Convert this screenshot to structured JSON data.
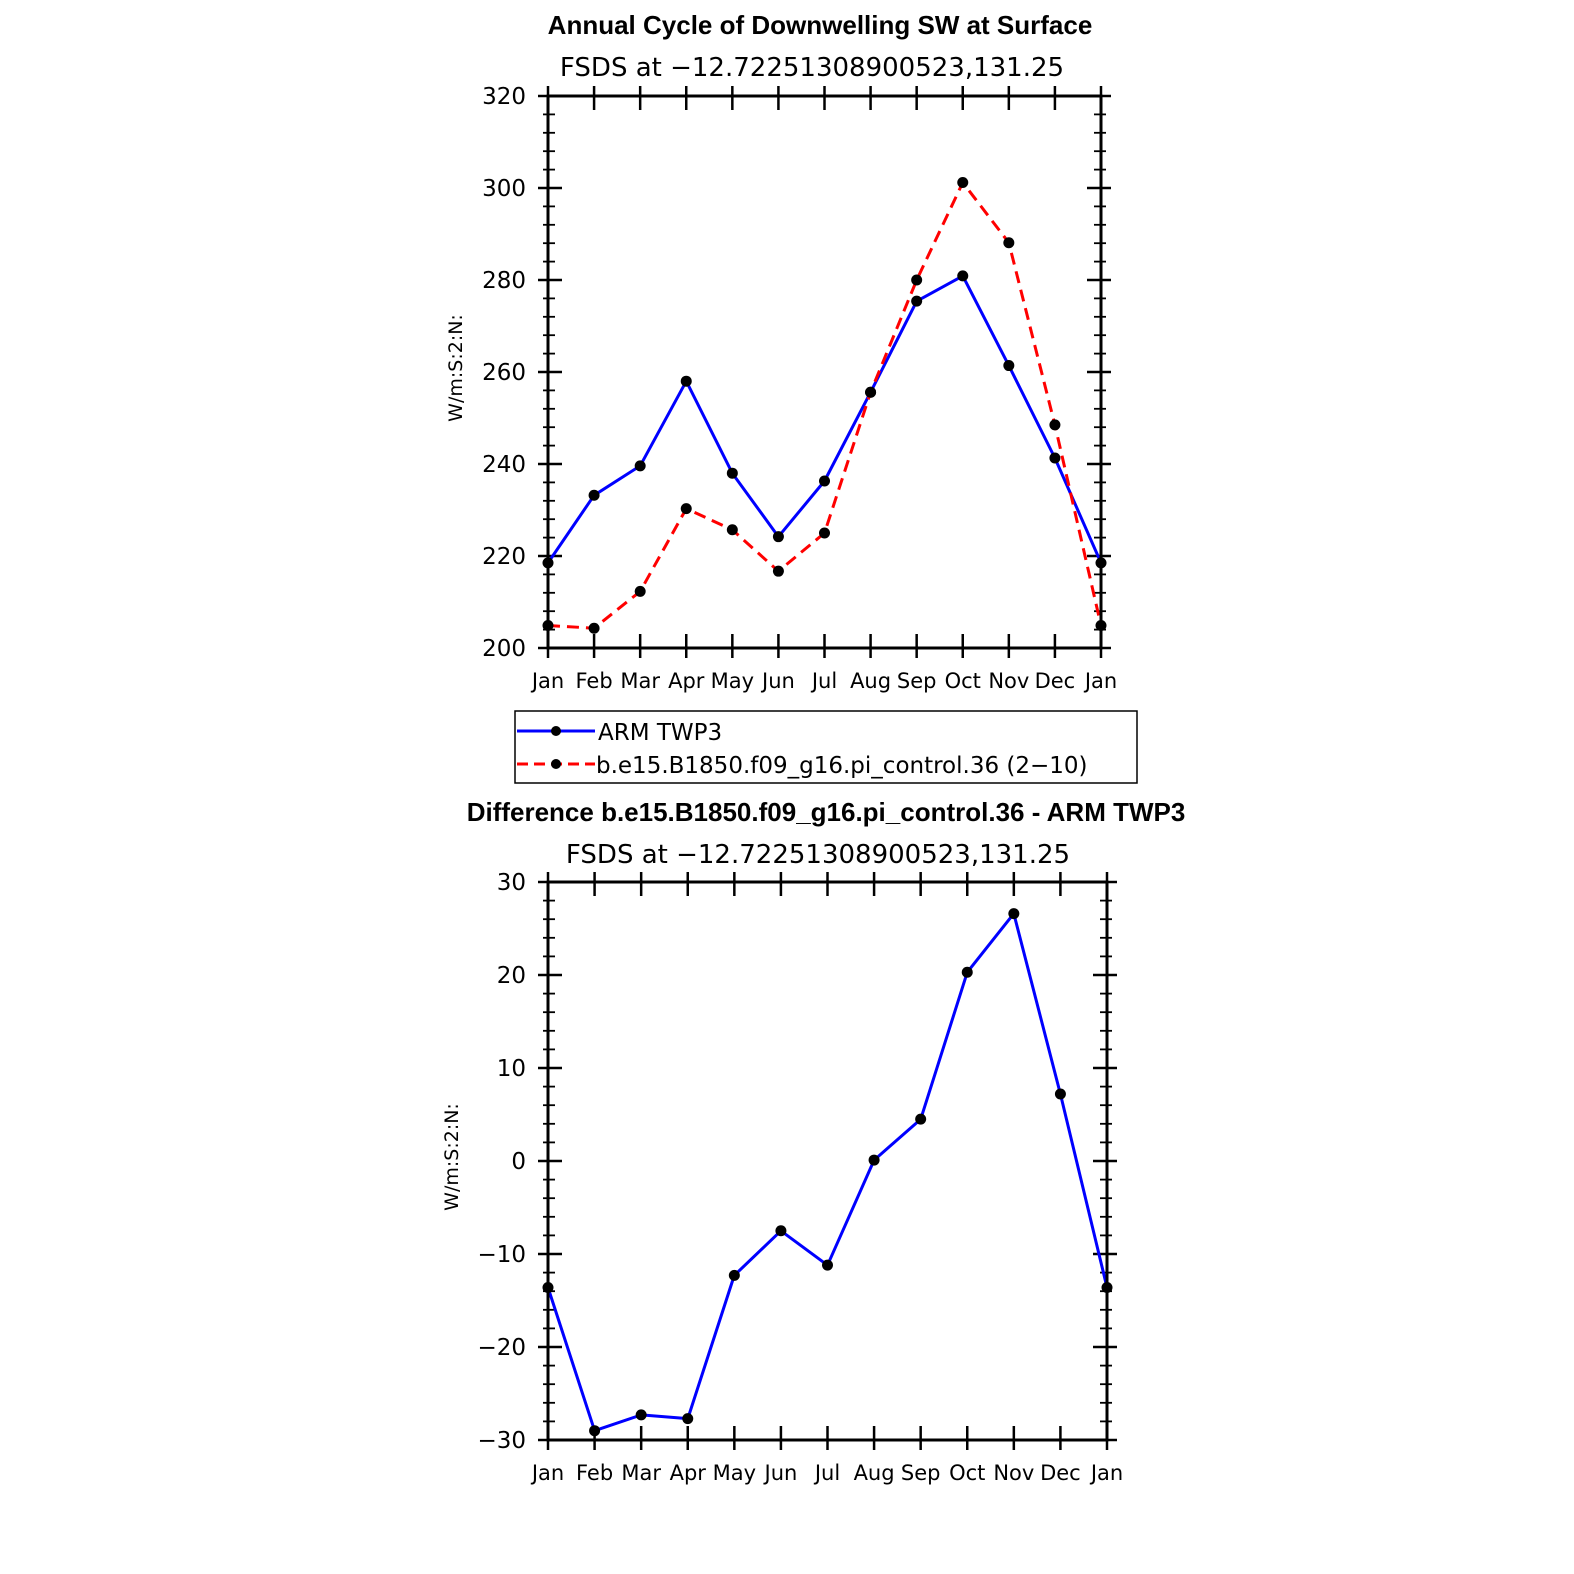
{
  "chart_data": [
    {
      "type": "line",
      "title": "Annual Cycle of Downwelling SW at Surface",
      "subtitle": "FSDS at −12.72251308900523,131.25",
      "ylabel": "W/m:S:2:N:",
      "xlabel": "",
      "categories": [
        "Jan",
        "Feb",
        "Mar",
        "Apr",
        "May",
        "Jun",
        "Jul",
        "Aug",
        "Sep",
        "Oct",
        "Nov",
        "Dec",
        "Jan"
      ],
      "ylim": [
        200,
        320
      ],
      "yticks": [
        "200",
        "220",
        "240",
        "260",
        "280",
        "300",
        "320"
      ],
      "series": [
        {
          "name": "ARM TWP3",
          "color": "#0000ff",
          "dash": "solid",
          "values": [
            218.5,
            233.2,
            239.6,
            258.0,
            238.0,
            224.2,
            236.3,
            255.6,
            275.4,
            280.9,
            261.4,
            241.3,
            218.5
          ]
        },
        {
          "name": "b.e15.B1850.f09_g16.pi_control.36 (2−10)",
          "color": "#ff0000",
          "dash": "dashed",
          "values": [
            204.9,
            204.3,
            212.3,
            230.3,
            225.7,
            216.7,
            225.0,
            255.6,
            280.0,
            301.2,
            288.1,
            248.5,
            204.9
          ]
        }
      ],
      "legend": [
        "ARM TWP3",
        "b.e15.B1850.f09_g16.pi_control.36 (2−10)"
      ],
      "legend_placement": "bottom"
    },
    {
      "type": "line",
      "title": "Difference b.e15.B1850.f09_g16.pi_control.36 - ARM TWP3",
      "subtitle": "FSDS at −12.72251308900523,131.25",
      "ylabel": "W/m:S:2:N:",
      "xlabel": "",
      "categories": [
        "Jan",
        "Feb",
        "Mar",
        "Apr",
        "May",
        "Jun",
        "Jul",
        "Aug",
        "Sep",
        "Oct",
        "Nov",
        "Dec",
        "Jan"
      ],
      "ylim": [
        -30,
        30
      ],
      "yticks": [
        "−30",
        "−20",
        "−10",
        "0",
        "10",
        "20",
        "30"
      ],
      "series": [
        {
          "color": "#0000ff",
          "dash": "solid",
          "values": [
            -13.6,
            -29.0,
            -27.3,
            -27.7,
            -12.3,
            -7.5,
            -11.2,
            0.1,
            4.5,
            20.3,
            26.6,
            7.2,
            -13.6
          ]
        }
      ]
    }
  ]
}
